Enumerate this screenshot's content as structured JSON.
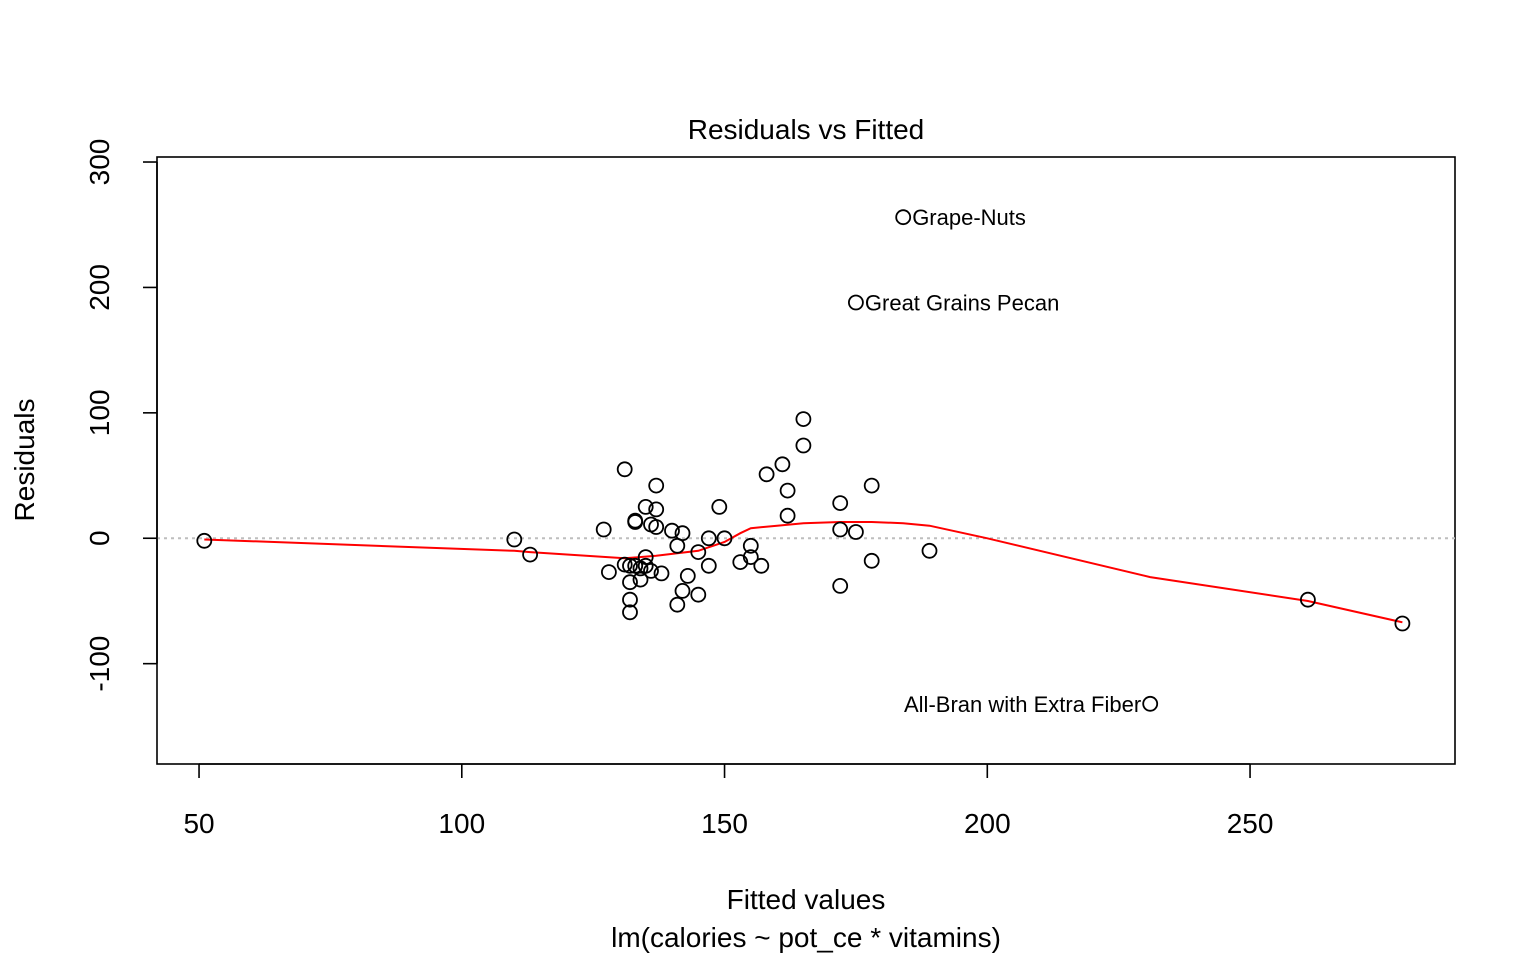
{
  "chart_data": {
    "type": "scatter",
    "title": "Residuals vs Fitted",
    "xlabel": "Fitted values",
    "subtitle": "lm(calories ~ pot_ce * vitamins)",
    "ylabel": "Residuals",
    "xlim": [
      42,
      289
    ],
    "ylim": [
      -180,
      304
    ],
    "xticks": [
      50,
      100,
      150,
      200,
      250
    ],
    "yticks": [
      -100,
      0,
      100,
      200,
      300
    ],
    "xtick_labels": [
      "50",
      "100",
      "150",
      "200",
      "250"
    ],
    "ytick_labels": [
      "-100",
      "0",
      "100",
      "200",
      "300"
    ],
    "reference_line": {
      "y": 0,
      "style": "dotted",
      "color": "#bebebe"
    },
    "smooth_color": "#ff0000",
    "points": [
      {
        "x": 51,
        "y": -2
      },
      {
        "x": 110,
        "y": -1
      },
      {
        "x": 113,
        "y": -13
      },
      {
        "x": 127,
        "y": 7
      },
      {
        "x": 128,
        "y": -27
      },
      {
        "x": 131,
        "y": -21
      },
      {
        "x": 131,
        "y": 55
      },
      {
        "x": 132,
        "y": -22
      },
      {
        "x": 132,
        "y": -35
      },
      {
        "x": 132,
        "y": -49
      },
      {
        "x": 132,
        "y": -59
      },
      {
        "x": 133,
        "y": -22
      },
      {
        "x": 133,
        "y": 13
      },
      {
        "x": 133,
        "y": 14
      },
      {
        "x": 134,
        "y": -33
      },
      {
        "x": 134,
        "y": -24
      },
      {
        "x": 135,
        "y": -15
      },
      {
        "x": 135,
        "y": 25
      },
      {
        "x": 135,
        "y": -22
      },
      {
        "x": 136,
        "y": 11
      },
      {
        "x": 136,
        "y": -26
      },
      {
        "x": 137,
        "y": 23
      },
      {
        "x": 137,
        "y": 42
      },
      {
        "x": 137,
        "y": 9
      },
      {
        "x": 138,
        "y": -28
      },
      {
        "x": 140,
        "y": 6
      },
      {
        "x": 141,
        "y": -6
      },
      {
        "x": 141,
        "y": -53
      },
      {
        "x": 142,
        "y": -42
      },
      {
        "x": 142,
        "y": 4
      },
      {
        "x": 143,
        "y": -30
      },
      {
        "x": 145,
        "y": -11
      },
      {
        "x": 145,
        "y": -45
      },
      {
        "x": 147,
        "y": 0
      },
      {
        "x": 147,
        "y": -22
      },
      {
        "x": 149,
        "y": 25
      },
      {
        "x": 150,
        "y": 0
      },
      {
        "x": 153,
        "y": -19
      },
      {
        "x": 155,
        "y": -6
      },
      {
        "x": 155,
        "y": -15
      },
      {
        "x": 157,
        "y": -22
      },
      {
        "x": 158,
        "y": 51
      },
      {
        "x": 161,
        "y": 59
      },
      {
        "x": 162,
        "y": 38
      },
      {
        "x": 162,
        "y": 18
      },
      {
        "x": 165,
        "y": 74
      },
      {
        "x": 165,
        "y": 95
      },
      {
        "x": 172,
        "y": 28
      },
      {
        "x": 172,
        "y": 7
      },
      {
        "x": 172,
        "y": -38
      },
      {
        "x": 175,
        "y": 5
      },
      {
        "x": 175,
        "y": 188,
        "label": "Great Grains Pecan"
      },
      {
        "x": 178,
        "y": 42
      },
      {
        "x": 178,
        "y": -18
      },
      {
        "x": 184,
        "y": 256,
        "label": "Grape-Nuts"
      },
      {
        "x": 189,
        "y": -10
      },
      {
        "x": 231,
        "y": -132,
        "label": "All-Bran with Extra Fiber"
      },
      {
        "x": 261,
        "y": -49
      },
      {
        "x": 279,
        "y": -68
      }
    ],
    "smooth": [
      [
        51,
        -1
      ],
      [
        110,
        -10
      ],
      [
        113,
        -11
      ],
      [
        131,
        -16
      ],
      [
        137,
        -14
      ],
      [
        145,
        -10
      ],
      [
        150,
        -3
      ],
      [
        153,
        4
      ],
      [
        155,
        8
      ],
      [
        160,
        10
      ],
      [
        165,
        12
      ],
      [
        172,
        13
      ],
      [
        178,
        13
      ],
      [
        184,
        12
      ],
      [
        189,
        10
      ],
      [
        200,
        0
      ],
      [
        231,
        -31
      ],
      [
        261,
        -50
      ],
      [
        279,
        -67
      ]
    ]
  }
}
